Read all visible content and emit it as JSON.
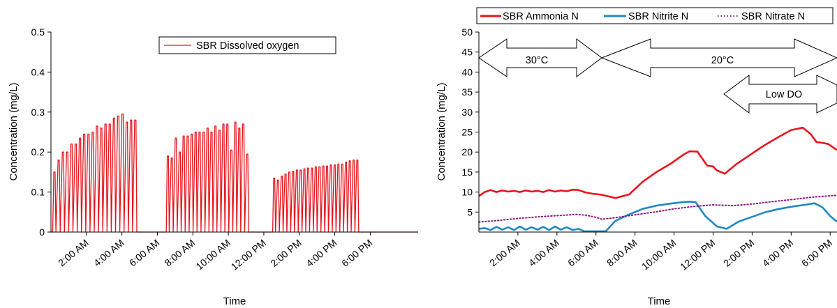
{
  "chart_data": [
    {
      "type": "line",
      "xlabel": "Time",
      "ylabel": "Concentration (mg/L)",
      "ylim": [
        0,
        0.5
      ],
      "y_ticks": [
        "0",
        "0.1",
        "0.2",
        "0.3",
        "0.4",
        "0.5"
      ],
      "x_ticks": [
        "2:00 AM",
        "4:00 AM",
        "6:00 AM",
        "8:00 AM",
        "10:00 AM",
        "12:00 PM",
        "2:00 PM",
        "4:00 PM",
        "6:00 PM"
      ],
      "x_unit": "hour of day",
      "xlim": [
        0,
        20.7
      ],
      "grid": false,
      "legend": "top-right",
      "series": [
        {
          "name": "SBR Dissolved oxygen",
          "color": "#e8141c",
          "pulse_groups": [
            {
              "start": 0.1,
              "end": 4.9,
              "peaks": [
                0.15,
                0.18,
                0.2,
                0.2,
                0.22,
                0.22,
                0.235,
                0.245,
                0.245,
                0.25,
                0.265,
                0.26,
                0.27,
                0.27,
                0.285,
                0.29,
                0.295,
                0.275,
                0.28,
                0.28
              ]
            },
            {
              "start": 6.5,
              "end": 11.2,
              "peaks": [
                0.19,
                0.185,
                0.235,
                0.2,
                0.24,
                0.24,
                0.245,
                0.25,
                0.25,
                0.25,
                0.26,
                0.25,
                0.265,
                0.255,
                0.27,
                0.27,
                0.205,
                0.275,
                0.26,
                0.27,
                0.195
              ]
            },
            {
              "start": 12.5,
              "end": 17.4,
              "peaks": [
                0.135,
                0.13,
                0.14,
                0.145,
                0.15,
                0.152,
                0.155,
                0.155,
                0.158,
                0.16,
                0.16,
                0.163,
                0.163,
                0.165,
                0.165,
                0.168,
                0.168,
                0.17,
                0.17,
                0.175,
                0.178,
                0.18,
                0.18
              ]
            }
          ]
        }
      ]
    },
    {
      "type": "line",
      "xlabel": "Time",
      "ylabel": "Concentration (mg/L)",
      "ylim": [
        0,
        50
      ],
      "y_ticks": [
        "5",
        "10",
        "15",
        "20",
        "25",
        "30",
        "35",
        "40",
        "45",
        "50"
      ],
      "x_ticks": [
        "2:00 AM",
        "4:00 AM",
        "6:00 AM",
        "8:00 AM",
        "10:00 AM",
        "12:00 PM",
        "2:00 PM",
        "4:00 PM",
        "6:00 PM"
      ],
      "x_unit": "hour of day",
      "xlim": [
        0,
        18.35
      ],
      "grid": false,
      "legend": "top",
      "annotations": [
        {
          "text": "30°C",
          "from": 0,
          "to": 6.0,
          "y": 44
        },
        {
          "text": "20°C",
          "from": 6.0,
          "to": 18.35,
          "y": 44
        },
        {
          "text": "Low DO",
          "from": 12.8,
          "to": 18.35,
          "y": 34
        }
      ],
      "series": [
        {
          "name": "SBR Ammonia N",
          "color": "#e8141c",
          "style": "solid",
          "x": [
            0,
            0.3,
            0.6,
            0.9,
            1.2,
            1.5,
            1.8,
            2.1,
            2.4,
            2.7,
            3.0,
            3.3,
            3.6,
            3.9,
            4.2,
            4.5,
            4.8,
            5.1,
            5.4,
            5.8,
            6.0,
            6.3,
            7.0,
            7.7,
            8.4,
            9.1,
            9.8,
            10.5,
            10.8,
            11.2,
            11.7,
            12.0,
            12.2,
            12.6,
            13.2,
            13.9,
            14.6,
            15.3,
            16.0,
            16.6,
            17.0,
            17.3,
            17.6,
            17.9,
            18.35
          ],
          "values": [
            9.0,
            10.0,
            10.5,
            10.0,
            10.4,
            10.1,
            10.3,
            10.0,
            10.4,
            10.1,
            10.3,
            10.0,
            10.5,
            10.1,
            10.4,
            10.2,
            10.6,
            10.5,
            10.0,
            9.6,
            9.5,
            9.3,
            8.5,
            9.4,
            12.6,
            15.0,
            17.0,
            19.4,
            20.2,
            20.1,
            16.6,
            16.4,
            15.4,
            14.6,
            17.0,
            19.3,
            21.6,
            23.6,
            25.5,
            26.1,
            24.5,
            22.5,
            22.3,
            22.0,
            20.5
          ]
        },
        {
          "name": "SBR Nitrite N",
          "color": "#1f88c5",
          "style": "solid",
          "x": [
            0,
            0.3,
            0.6,
            0.9,
            1.2,
            1.5,
            1.8,
            2.1,
            2.4,
            2.7,
            3.0,
            3.3,
            3.6,
            3.9,
            4.2,
            4.5,
            4.8,
            5.1,
            5.4,
            5.8,
            6.0,
            6.3,
            6.5,
            7.0,
            7.7,
            8.4,
            9.1,
            9.8,
            10.5,
            10.8,
            11.1,
            11.6,
            12.2,
            12.7,
            13.3,
            14.0,
            14.7,
            15.4,
            16.1,
            16.7,
            17.2,
            17.6,
            18.0,
            18.35
          ],
          "values": [
            0.8,
            1.0,
            0.5,
            1.3,
            0.6,
            1.2,
            0.5,
            1.4,
            0.6,
            1.2,
            0.6,
            1.3,
            0.5,
            1.4,
            0.6,
            1.2,
            0.5,
            0.8,
            0.2,
            0.2,
            0.2,
            0.2,
            0.2,
            2.8,
            4.4,
            5.8,
            6.6,
            7.1,
            7.5,
            7.6,
            7.5,
            4.0,
            1.4,
            0.8,
            2.6,
            3.8,
            5.0,
            5.8,
            6.4,
            6.8,
            7.2,
            6.2,
            4.0,
            2.6
          ]
        },
        {
          "name": "SBR Nitrate N",
          "color": "#8b1b86",
          "style": "dotted",
          "x": [
            0,
            1.0,
            2.0,
            3.0,
            4.0,
            5.0,
            5.5,
            6.0,
            6.3,
            7.0,
            8.0,
            9.0,
            10.0,
            11.0,
            12.0,
            13.0,
            14.0,
            15.0,
            16.0,
            17.0,
            18.35
          ],
          "values": [
            2.5,
            2.9,
            3.4,
            3.8,
            4.1,
            4.4,
            4.2,
            3.7,
            3.2,
            3.6,
            4.3,
            5.0,
            5.8,
            6.4,
            6.8,
            6.6,
            7.0,
            7.6,
            8.1,
            8.7,
            9.2
          ]
        }
      ]
    }
  ]
}
